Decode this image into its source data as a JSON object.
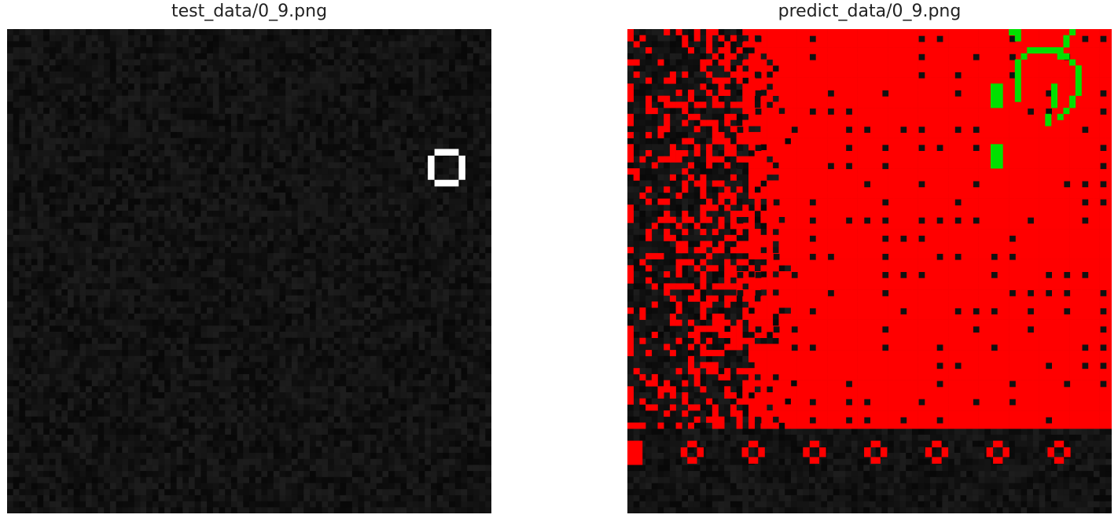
{
  "figure": {
    "panels": [
      {
        "title": "test_data/0_9.png"
      },
      {
        "title": "predict_data/0_9.png"
      }
    ]
  },
  "colors": {
    "background": "#ffffff",
    "noise_base": "#111111",
    "ring": "#ffffff",
    "prediction_red": "#ff0000",
    "prediction_green": "#00e000"
  }
}
